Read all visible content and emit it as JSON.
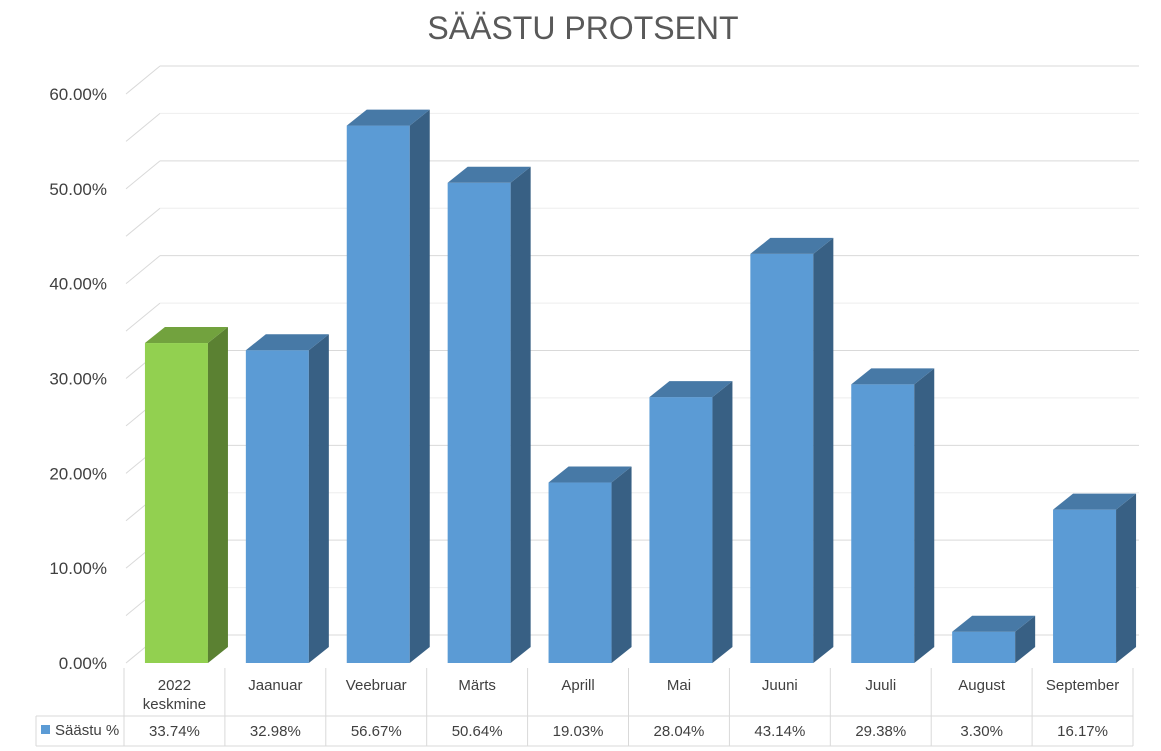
{
  "chart_data": {
    "type": "bar",
    "title": "SÄÄSTU PROTSENT",
    "categories": [
      [
        "2022",
        "keskmine"
      ],
      [
        "Jaanuar"
      ],
      [
        "Veebruar"
      ],
      [
        "Märts"
      ],
      [
        "Aprill"
      ],
      [
        "Mai"
      ],
      [
        "Juuni"
      ],
      [
        "Juuli"
      ],
      [
        "August"
      ],
      [
        "September"
      ]
    ],
    "series": [
      {
        "name": "Säästu %",
        "values": [
          33.74,
          32.98,
          56.67,
          50.64,
          19.03,
          28.04,
          43.14,
          29.38,
          3.3,
          16.17
        ],
        "value_labels": [
          "33.74%",
          "32.98%",
          "56.67%",
          "50.64%",
          "19.03%",
          "28.04%",
          "43.14%",
          "29.38%",
          "3.30%",
          "16.17%"
        ],
        "color": "#5B9BD5",
        "highlight_index": 0,
        "highlight_color": "#92D050"
      }
    ],
    "y_ticks": [
      "0.00%",
      "10.00%",
      "20.00%",
      "30.00%",
      "40.00%",
      "50.00%",
      "60.00%"
    ],
    "ylim": [
      0,
      60
    ],
    "grid": true,
    "legend": "data-table"
  }
}
